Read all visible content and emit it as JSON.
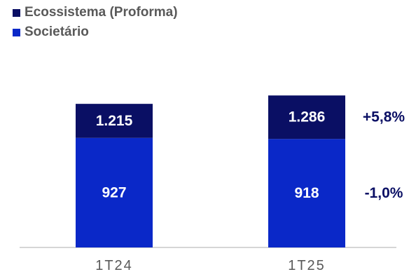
{
  "chart_data": {
    "type": "bar",
    "stacked": true,
    "categories": [
      "1T24",
      "1T25"
    ],
    "series": [
      {
        "name": "Societário",
        "values": [
          927,
          918
        ],
        "labels": [
          "927",
          "918"
        ],
        "color": "#0a28c8",
        "label_color": "#ffffff"
      },
      {
        "name": "Ecossistema (Proforma)",
        "values": [
          288,
          368
        ],
        "labels": [
          "1.215",
          "1.286"
        ],
        "color": "#0a0f64",
        "label_color": "#ffffff"
      }
    ],
    "annotations": [
      {
        "text": "+5,8%",
        "category": "1T25",
        "series": "Ecossistema (Proforma)",
        "color": "#0a0f64"
      },
      {
        "text": "-1,0%",
        "category": "1T25",
        "series": "Societário",
        "color": "#0a0f64"
      }
    ],
    "legend": {
      "position": "top-left",
      "order": [
        "Ecossistema (Proforma)",
        "Societário"
      ]
    },
    "ylim": [
      0,
      1300
    ],
    "grid": false,
    "baseline_color": "#c8c8c8",
    "tick_color": "#595959"
  }
}
